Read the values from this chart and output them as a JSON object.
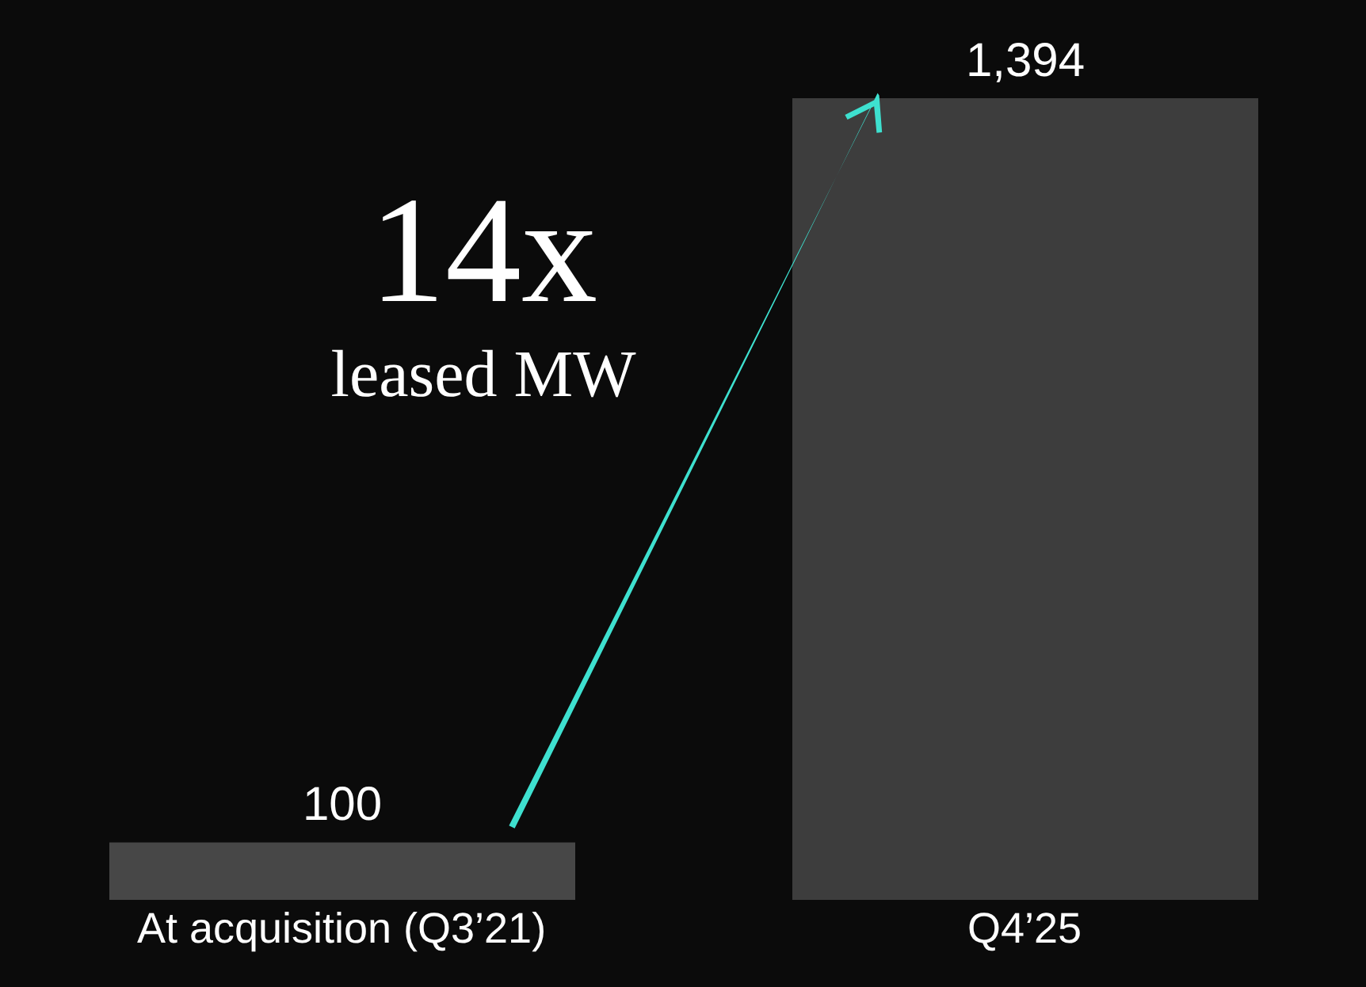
{
  "chart_data": {
    "type": "bar",
    "categories": [
      "At acquisition (Q3’21)",
      "Q4’25"
    ],
    "values": [
      100,
      1394
    ],
    "colors": [
      "#474747",
      "#3d3d3d"
    ],
    "value_labels": [
      "100",
      "1,394"
    ],
    "annotations": [
      "14x",
      "leased MW"
    ],
    "grid": false,
    "legend": false
  }
}
